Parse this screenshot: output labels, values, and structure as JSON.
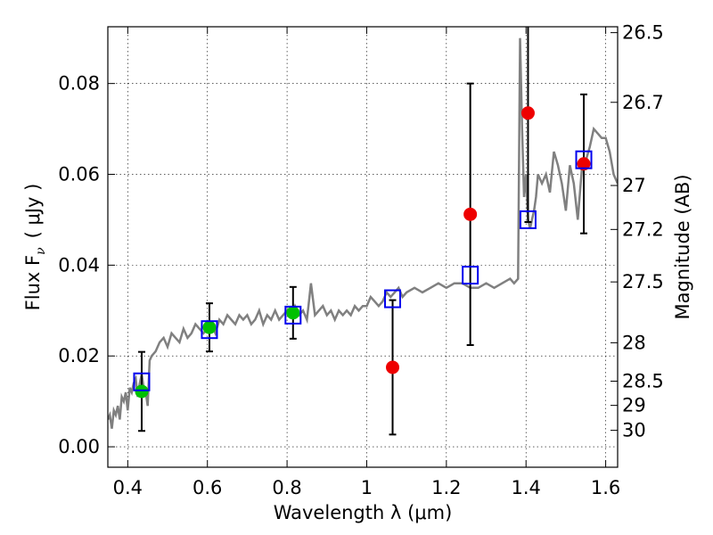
{
  "chart_data": {
    "type": "scatter",
    "xlabel": "Wavelength  λ (μm)",
    "ylabel": "Flux  F",
    "ylabel_sub": "ν",
    "ylabel_unit": "( μJy )",
    "y2label": "Magnitude (AB)",
    "xlim": [
      0.35,
      1.63
    ],
    "ylim": [
      -0.0045,
      0.0925
    ],
    "x_ticks": [
      0.4,
      0.6,
      0.8,
      1.0,
      1.2,
      1.4,
      1.6
    ],
    "x_tick_labels": [
      "0.4",
      "0.6",
      "0.8",
      "1",
      "1.2",
      "1.4",
      "1.6"
    ],
    "y_ticks": [
      0.0,
      0.02,
      0.04,
      0.06,
      0.08
    ],
    "y_tick_labels": [
      "0.00",
      "0.02",
      "0.04",
      "0.06",
      "0.08"
    ],
    "y2_ticks": [
      {
        "mag": 26.5,
        "label": "26.5"
      },
      {
        "mag": 26.7,
        "label": "26.7"
      },
      {
        "mag": 27.0,
        "label": "27"
      },
      {
        "mag": 27.2,
        "label": "27.2"
      },
      {
        "mag": 27.5,
        "label": "27.5"
      },
      {
        "mag": 28.0,
        "label": "28"
      },
      {
        "mag": 28.5,
        "label": "28.5"
      },
      {
        "mag": 29.0,
        "label": "29"
      },
      {
        "mag": 30.0,
        "label": "30"
      }
    ],
    "grid": true,
    "colors": {
      "model": "#808080",
      "model_points": "#0000ee",
      "green": "#00c000",
      "red": "#ee0000",
      "errorbar": "#000000"
    },
    "model_spectrum": {
      "x": [
        0.35,
        0.355,
        0.36,
        0.365,
        0.37,
        0.375,
        0.38,
        0.385,
        0.39,
        0.395,
        0.4,
        0.405,
        0.41,
        0.415,
        0.42,
        0.425,
        0.43,
        0.435,
        0.44,
        0.445,
        0.45,
        0.455,
        0.46,
        0.47,
        0.48,
        0.49,
        0.5,
        0.51,
        0.52,
        0.53,
        0.54,
        0.55,
        0.56,
        0.57,
        0.58,
        0.59,
        0.6,
        0.61,
        0.62,
        0.63,
        0.64,
        0.65,
        0.66,
        0.67,
        0.68,
        0.69,
        0.7,
        0.71,
        0.72,
        0.73,
        0.74,
        0.75,
        0.76,
        0.77,
        0.78,
        0.79,
        0.8,
        0.81,
        0.82,
        0.83,
        0.84,
        0.85,
        0.86,
        0.87,
        0.88,
        0.89,
        0.9,
        0.91,
        0.92,
        0.93,
        0.94,
        0.95,
        0.96,
        0.97,
        0.98,
        0.99,
        1.0,
        1.01,
        1.02,
        1.03,
        1.04,
        1.05,
        1.06,
        1.07,
        1.08,
        1.09,
        1.1,
        1.12,
        1.14,
        1.16,
        1.18,
        1.2,
        1.22,
        1.24,
        1.26,
        1.28,
        1.3,
        1.32,
        1.34,
        1.36,
        1.37,
        1.38,
        1.385,
        1.39,
        1.395,
        1.4,
        1.405,
        1.41,
        1.415,
        1.42,
        1.425,
        1.43,
        1.44,
        1.45,
        1.46,
        1.47,
        1.48,
        1.49,
        1.5,
        1.51,
        1.52,
        1.53,
        1.54,
        1.55,
        1.56,
        1.57,
        1.58,
        1.59,
        1.6,
        1.61,
        1.62,
        1.63
      ],
      "y": [
        0.006,
        0.007,
        0.004,
        0.008,
        0.007,
        0.009,
        0.006,
        0.011,
        0.01,
        0.012,
        0.008,
        0.013,
        0.012,
        0.014,
        0.015,
        0.011,
        0.014,
        0.016,
        0.013,
        0.012,
        0.009,
        0.019,
        0.02,
        0.021,
        0.023,
        0.024,
        0.022,
        0.025,
        0.024,
        0.023,
        0.026,
        0.024,
        0.025,
        0.027,
        0.026,
        0.025,
        0.026,
        0.027,
        0.025,
        0.028,
        0.027,
        0.029,
        0.028,
        0.027,
        0.029,
        0.028,
        0.029,
        0.027,
        0.028,
        0.03,
        0.027,
        0.029,
        0.028,
        0.03,
        0.028,
        0.029,
        0.03,
        0.029,
        0.031,
        0.029,
        0.03,
        0.028,
        0.036,
        0.029,
        0.03,
        0.031,
        0.029,
        0.03,
        0.028,
        0.03,
        0.029,
        0.03,
        0.029,
        0.031,
        0.03,
        0.031,
        0.031,
        0.033,
        0.032,
        0.031,
        0.032,
        0.034,
        0.033,
        0.034,
        0.035,
        0.033,
        0.034,
        0.035,
        0.034,
        0.035,
        0.036,
        0.035,
        0.036,
        0.036,
        0.035,
        0.035,
        0.036,
        0.035,
        0.036,
        0.037,
        0.036,
        0.037,
        0.09,
        0.07,
        0.055,
        0.06,
        0.05,
        0.048,
        0.05,
        0.052,
        0.055,
        0.06,
        0.058,
        0.06,
        0.056,
        0.065,
        0.062,
        0.058,
        0.052,
        0.062,
        0.058,
        0.05,
        0.061,
        0.063,
        0.066,
        0.07,
        0.069,
        0.068,
        0.068,
        0.065,
        0.06,
        0.058
      ]
    },
    "model_points": [
      {
        "x": 0.435,
        "y": 0.0143
      },
      {
        "x": 0.605,
        "y": 0.0258
      },
      {
        "x": 0.815,
        "y": 0.029
      },
      {
        "x": 1.065,
        "y": 0.0326
      },
      {
        "x": 1.26,
        "y": 0.0378
      },
      {
        "x": 1.405,
        "y": 0.05
      },
      {
        "x": 1.545,
        "y": 0.0632
      }
    ],
    "observed_points": [
      {
        "x": 0.435,
        "y": 0.0122,
        "err": 0.0087,
        "color": "green"
      },
      {
        "x": 0.605,
        "y": 0.0263,
        "err": 0.0053,
        "color": "green"
      },
      {
        "x": 0.815,
        "y": 0.0295,
        "err": 0.0057,
        "color": "green"
      },
      {
        "x": 1.065,
        "y": 0.0175,
        "err": 0.0148,
        "color": "red"
      },
      {
        "x": 1.26,
        "y": 0.0512,
        "err": 0.0288,
        "color": "red"
      },
      {
        "x": 1.405,
        "y": 0.0735,
        "err": 0.024,
        "color": "red"
      },
      {
        "x": 1.545,
        "y": 0.0623,
        "err": 0.0153,
        "color": "red"
      }
    ]
  }
}
